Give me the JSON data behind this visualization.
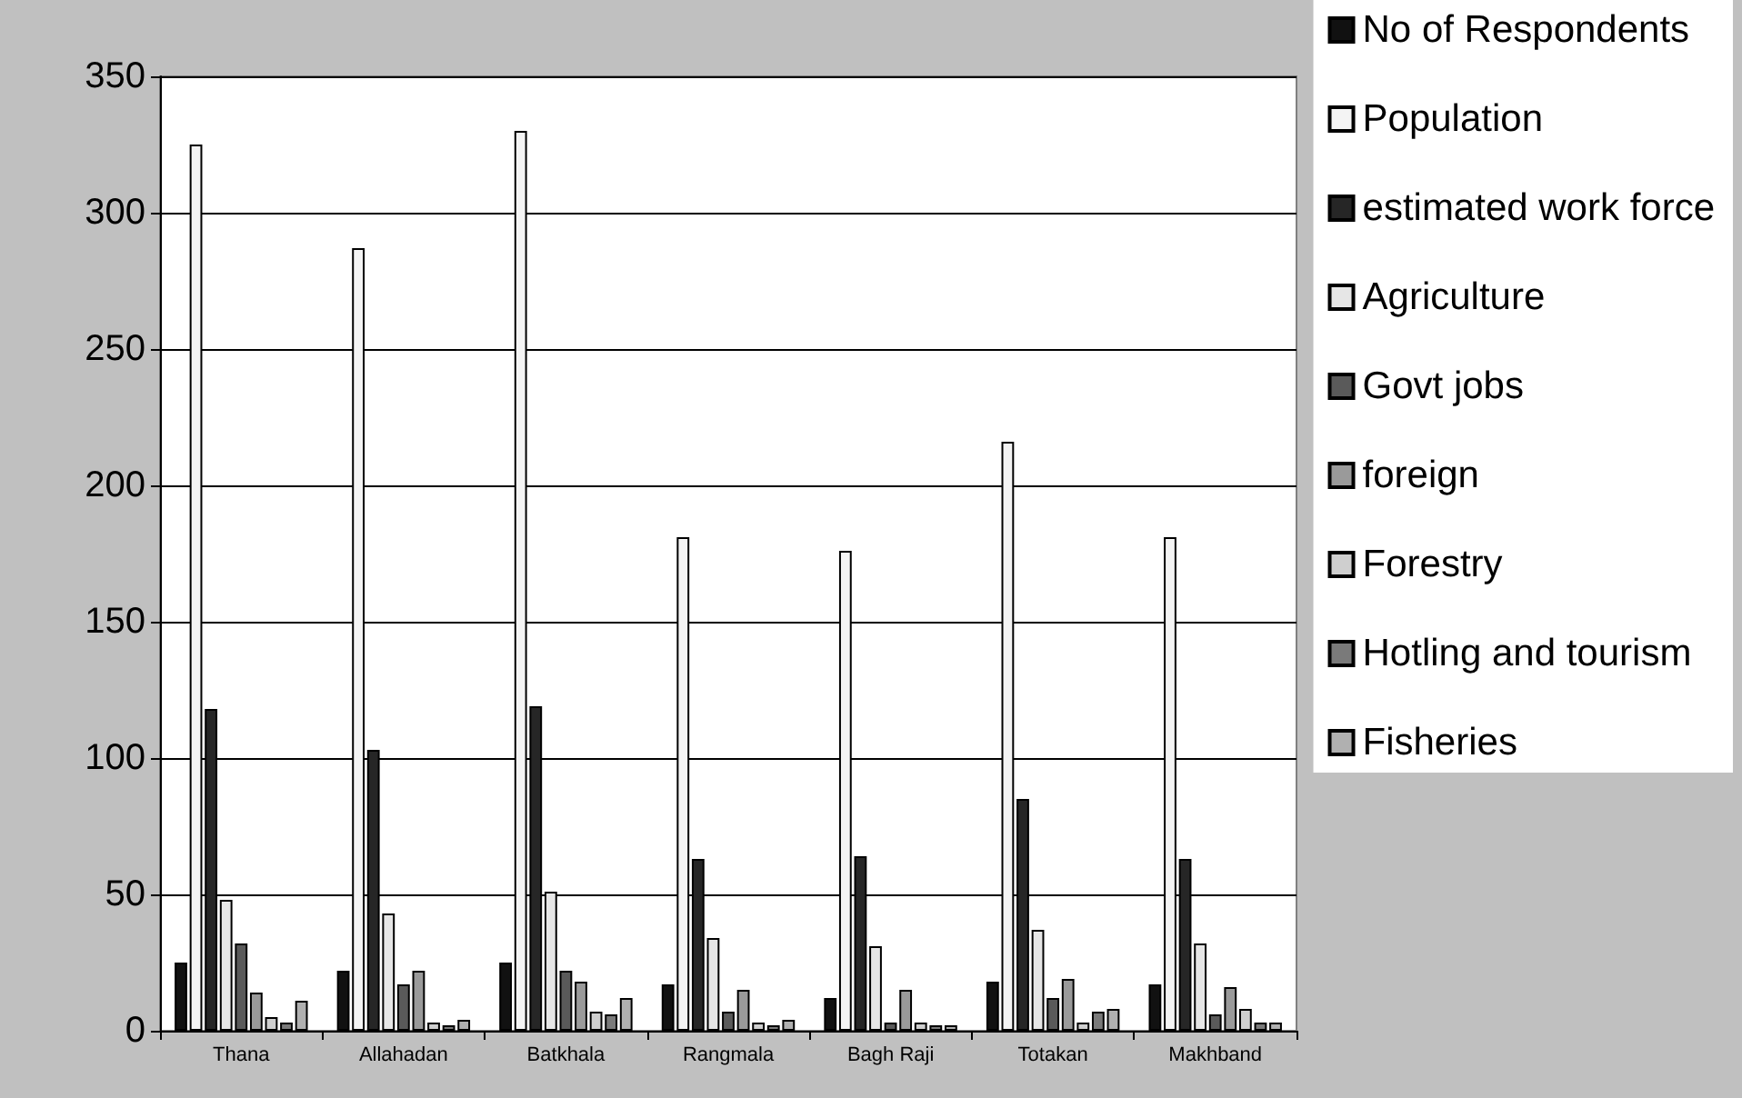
{
  "chart_data": {
    "type": "bar",
    "categories": [
      "Thana",
      "Allahadan",
      "Batkhala",
      "Rangmala",
      "Bagh Raji",
      "Totakan",
      "Makhband"
    ],
    "series": [
      {
        "name": "No of Respondents",
        "color": "#111111",
        "values": [
          25,
          22,
          25,
          17,
          12,
          18,
          17
        ]
      },
      {
        "name": "Population",
        "color": "#f4f4f4",
        "values": [
          325,
          287,
          330,
          181,
          176,
          216,
          181
        ]
      },
      {
        "name": "estimated work force",
        "color": "#262626",
        "values": [
          118,
          103,
          119,
          63,
          64,
          85,
          63
        ]
      },
      {
        "name": "Agriculture",
        "color": "#e6e6e6",
        "values": [
          48,
          43,
          51,
          34,
          31,
          37,
          32
        ]
      },
      {
        "name": "Govt jobs",
        "color": "#5a5a5a",
        "values": [
          32,
          17,
          22,
          7,
          3,
          12,
          6
        ]
      },
      {
        "name": "foreign",
        "color": "#9a9a9a",
        "values": [
          14,
          22,
          18,
          15,
          15,
          19,
          16
        ]
      },
      {
        "name": "Forestry",
        "color": "#cfcfcf",
        "values": [
          5,
          3,
          7,
          3,
          3,
          3,
          8
        ]
      },
      {
        "name": "Hotling and tourism",
        "color": "#7a7a7a",
        "values": [
          3,
          2,
          6,
          2,
          2,
          7,
          3
        ]
      },
      {
        "name": "Fisheries",
        "color": "#b0b0b0",
        "values": [
          11,
          4,
          12,
          4,
          2,
          8,
          3
        ]
      }
    ],
    "ylim": [
      0,
      350
    ],
    "yticks": [
      0,
      50,
      100,
      150,
      200,
      250,
      300,
      350
    ],
    "grid": "y",
    "legend": "right"
  }
}
